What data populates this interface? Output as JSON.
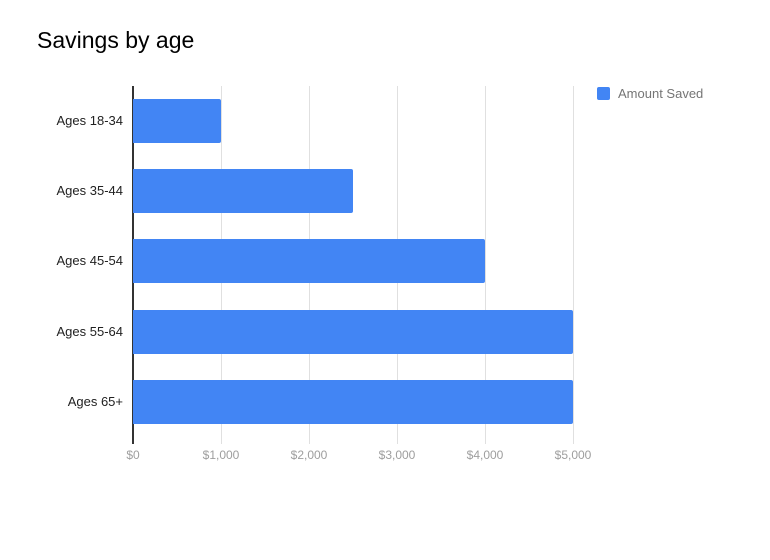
{
  "title": "Savings by age",
  "chart_data": {
    "type": "bar",
    "orientation": "horizontal",
    "title": "Savings by age",
    "categories": [
      "Ages 18-34",
      "Ages 35-44",
      "Ages 45-54",
      "Ages 55-64",
      "Ages 65+"
    ],
    "series": [
      {
        "name": "Amount Saved",
        "values": [
          1000,
          2500,
          4000,
          5000,
          5000
        ]
      }
    ],
    "x_axis": {
      "min": 0,
      "max": 5000,
      "ticks": [
        0,
        1000,
        2000,
        3000,
        4000,
        5000
      ],
      "tick_labels": [
        "$0",
        "$1,000",
        "$2,000",
        "$3,000",
        "$4,000",
        "$5,000"
      ]
    },
    "grid": true,
    "legend_position": "top-right",
    "colors": {
      "bar": "#4285f4",
      "baseline": "#333333",
      "gridline": "#e0e0e0",
      "category_label": "#212121",
      "tick_label": "#9e9e9e",
      "legend_text": "#757575",
      "title": "#000000"
    }
  }
}
